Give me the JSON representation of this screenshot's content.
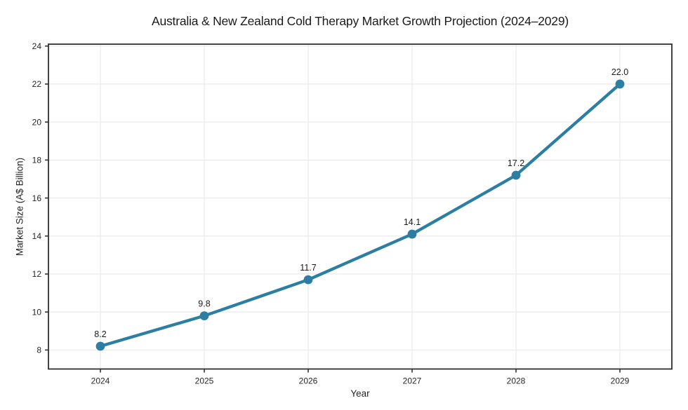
{
  "chart_data": {
    "type": "line",
    "title": "Australia & New Zealand Cold Therapy Market Growth Projection (2024–2029)",
    "xlabel": "Year",
    "ylabel": "Market Size (A$ Billion)",
    "x": [
      2024,
      2025,
      2026,
      2027,
      2028,
      2029
    ],
    "series": [
      {
        "name": "Market Size (A$ Billion)",
        "values": [
          8.2,
          9.8,
          11.7,
          14.1,
          17.2,
          22.0
        ]
      }
    ],
    "point_labels": [
      "8.2",
      "9.8",
      "11.7",
      "14.1",
      "17.2",
      "22.0"
    ],
    "x_tick_labels": [
      "2024",
      "2025",
      "2026",
      "2027",
      "2028",
      "2029"
    ],
    "y_ticks": [
      8,
      10,
      12,
      14,
      16,
      18,
      20,
      22,
      24
    ],
    "ylim": [
      7.0,
      24.1
    ],
    "grid": true,
    "legend_position": "none",
    "colors": {
      "line": "#2c7ea2",
      "marker": "#2c7ea2",
      "grid": "#e8e8e8",
      "spine": "#303030",
      "tick_text": "#262626",
      "title_text": "#1a1a1a"
    }
  }
}
